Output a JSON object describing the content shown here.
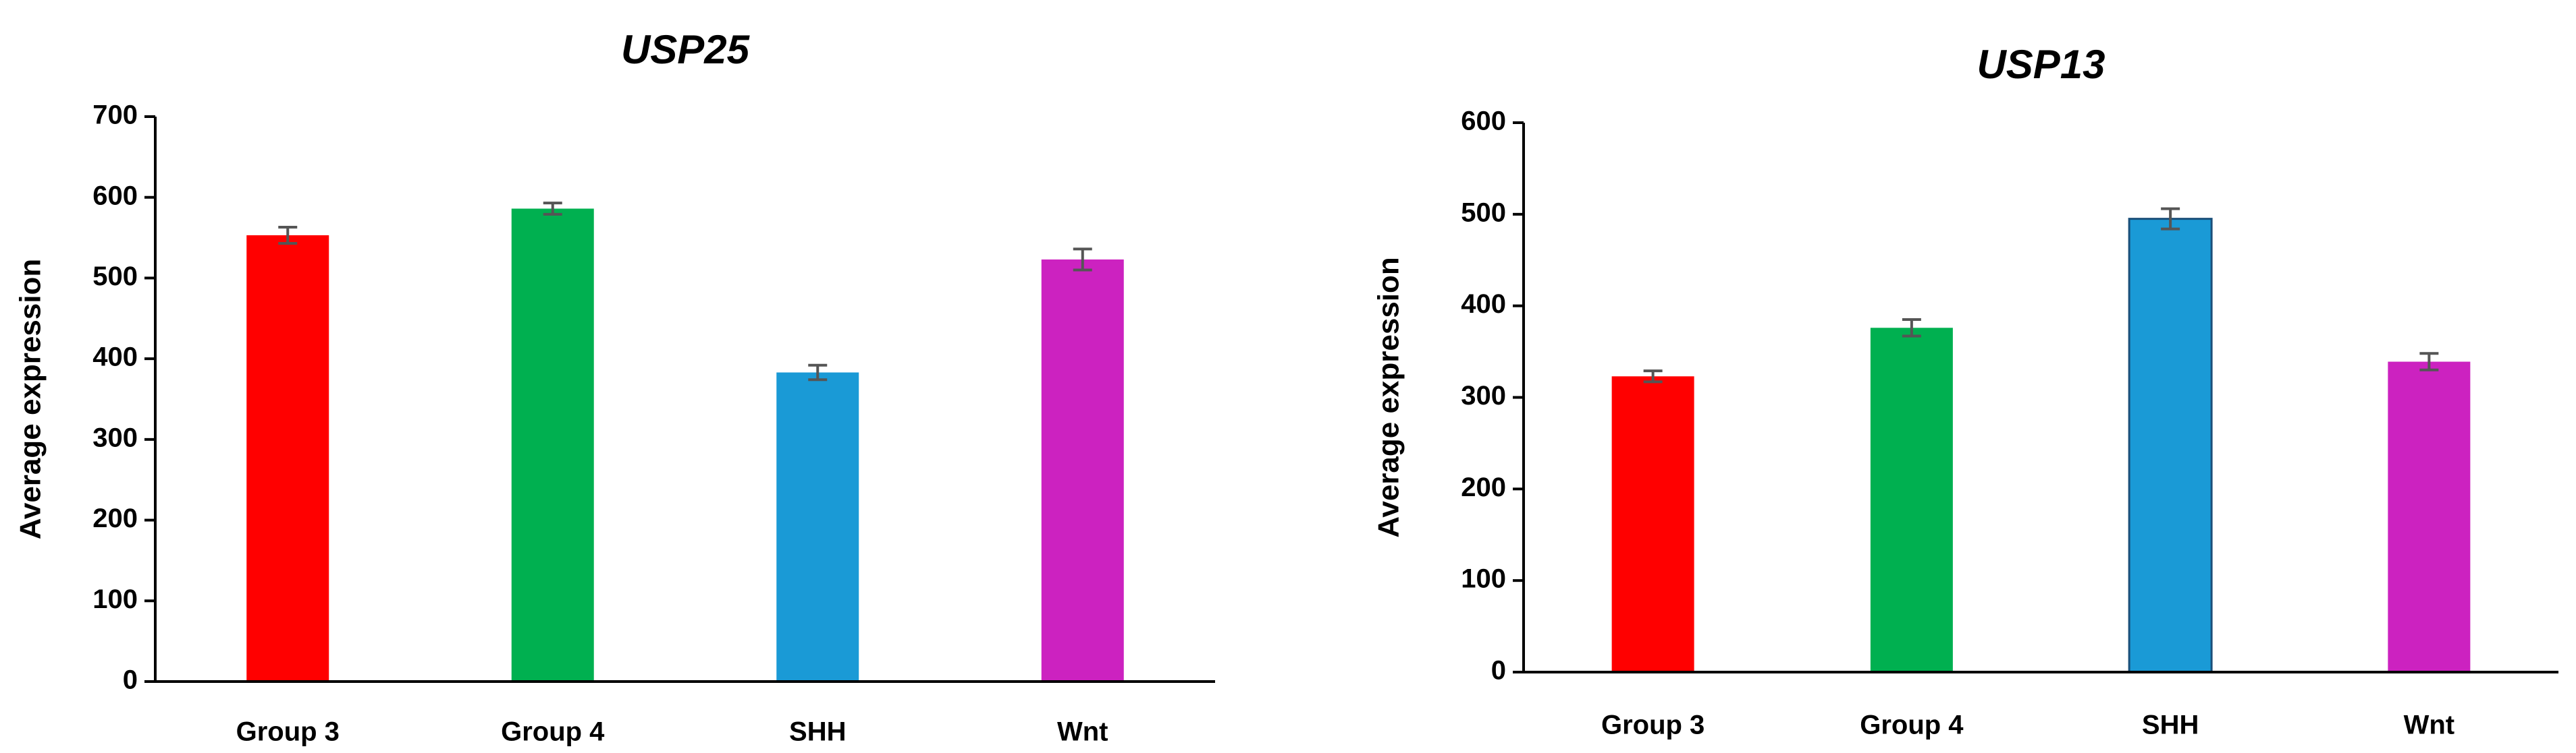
{
  "chart_data": [
    {
      "type": "bar",
      "title": "USP25",
      "xlabel": "",
      "ylabel": "Average expression",
      "ylim": [
        0,
        700
      ],
      "yticks": [
        0,
        100,
        200,
        300,
        400,
        500,
        600,
        700
      ],
      "categories": [
        "Group 3",
        "Group 4",
        "SHH",
        "Wnt"
      ],
      "values": [
        553,
        586,
        383,
        523
      ],
      "errors": [
        10,
        7,
        9,
        13
      ],
      "colors": [
        "#FF0000",
        "#00B050",
        "#1A9AD6",
        "#CC22C0"
      ],
      "grid": false,
      "legend": "none"
    },
    {
      "type": "bar",
      "title": "USP13",
      "xlabel": "",
      "ylabel": "Average expression",
      "ylim": [
        0,
        600
      ],
      "yticks": [
        0,
        100,
        200,
        300,
        400,
        500,
        600
      ],
      "categories": [
        "Group 3",
        "Group 4",
        "SHH",
        "Wnt"
      ],
      "values": [
        323,
        376,
        495,
        339
      ],
      "errors": [
        6,
        9,
        11,
        9
      ],
      "colors": [
        "#FF0000",
        "#00B050",
        "#1A9AD6",
        "#CC22C0"
      ],
      "grid": false,
      "legend": "none"
    }
  ]
}
